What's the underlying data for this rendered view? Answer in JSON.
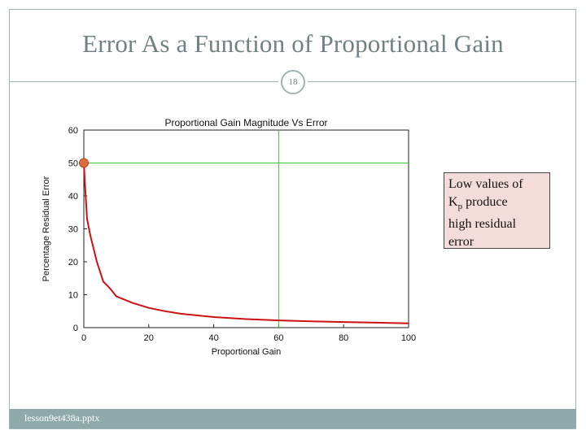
{
  "slide": {
    "title": "Error As a Function of Proportional Gain",
    "page_number": "18",
    "footer": "lesson9et438a.pptx",
    "callout": {
      "line1": "Low values of",
      "k": "K",
      "sub": "p",
      "line2_rest": " produce",
      "line3": "high residual",
      "line4": "error"
    }
  },
  "colors": {
    "frame": "#9fb4b4",
    "curve": "#cc1111",
    "marker": "#e06a3f",
    "crosshair": "#33cc33",
    "callout_bg": "#f3dcd9",
    "footer_bg": "#8eaaab"
  },
  "chart_data": {
    "type": "line",
    "title": "Proportional Gain Magnitude Vs Error",
    "xlabel": "Proportional Gain",
    "ylabel": "Percentage Residual Error",
    "xlim": [
      0,
      100
    ],
    "ylim": [
      0,
      60
    ],
    "xticks": [
      0,
      20,
      40,
      60,
      80,
      100
    ],
    "yticks": [
      0,
      10,
      20,
      30,
      40,
      50,
      60
    ],
    "grid": false,
    "series": [
      {
        "x": [
          0,
          0.5,
          1,
          2,
          3,
          4,
          6,
          8,
          10,
          15,
          20,
          25,
          30,
          40,
          50,
          60,
          70,
          80,
          90,
          100
        ],
        "values": [
          50,
          41,
          33,
          28,
          24,
          20,
          14,
          12,
          9.5,
          7.5,
          6,
          5,
          4.2,
          3.2,
          2.6,
          2.2,
          1.9,
          1.7,
          1.5,
          1.3
        ]
      }
    ],
    "highlight_point": {
      "x": 0,
      "y": 50
    },
    "crosshair": {
      "x": 60,
      "y": 50
    }
  }
}
